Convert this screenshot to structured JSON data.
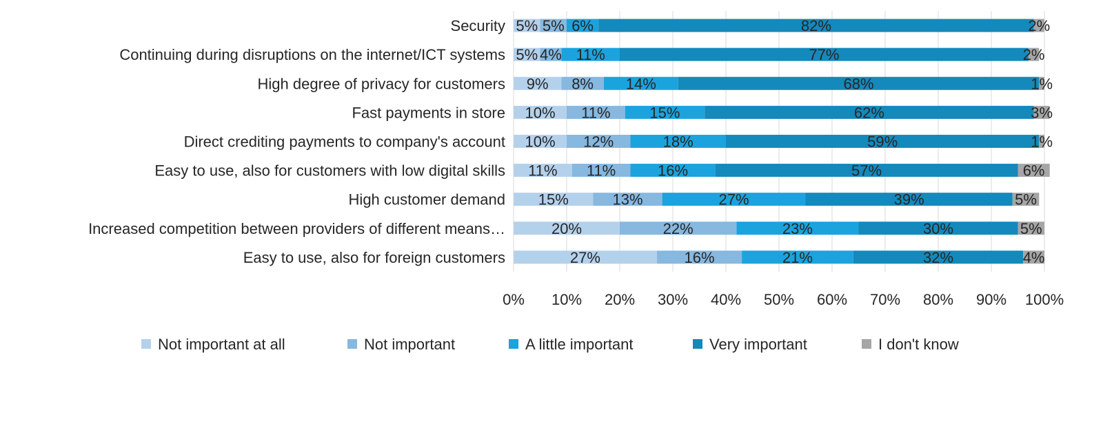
{
  "chart_data": {
    "type": "bar",
    "orientation": "horizontal",
    "stacked": true,
    "title": "",
    "xlabel": "",
    "ylabel": "",
    "xlim": [
      0,
      100
    ],
    "grid": true,
    "legend_position": "bottom",
    "categories": [
      "Security",
      "Continuing during disruptions on the internet/ICT systems",
      "High degree of privacy for customers",
      "Fast payments in store",
      "Direct crediting payments to company's account",
      "Easy to use, also for customers with low digital skills",
      "High customer demand",
      "Increased competition between providers of different means…",
      "Easy to use, also for foreign customers"
    ],
    "x_ticks": [
      "0%",
      "10%",
      "20%",
      "30%",
      "40%",
      "50%",
      "60%",
      "70%",
      "80%",
      "90%",
      "100%"
    ],
    "series": [
      {
        "name": "Not important at all",
        "color": "#b4d1ec",
        "values": [
          5,
          5,
          9,
          10,
          10,
          11,
          15,
          20,
          27
        ]
      },
      {
        "name": "Not important",
        "color": "#86b8e0",
        "values": [
          5,
          4,
          8,
          11,
          12,
          11,
          13,
          22,
          16
        ]
      },
      {
        "name": "A little important",
        "color": "#1ba3de",
        "values": [
          6,
          11,
          14,
          15,
          18,
          16,
          27,
          23,
          21
        ]
      },
      {
        "name": "Very important",
        "color": "#1489bb",
        "values": [
          82,
          77,
          68,
          62,
          59,
          57,
          39,
          30,
          32
        ]
      },
      {
        "name": "I don't know",
        "color": "#a6a6a6",
        "values": [
          2,
          2,
          1,
          3,
          1,
          6,
          5,
          5,
          4
        ]
      }
    ]
  }
}
